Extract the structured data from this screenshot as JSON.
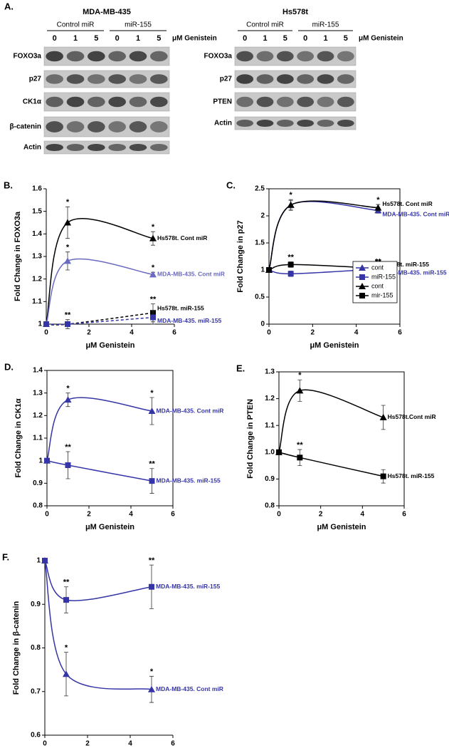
{
  "panel_a": {
    "label": "A.",
    "blots": [
      {
        "title": "MDA-MB-435",
        "groups": [
          "Control miR",
          "miR-155"
        ],
        "lanes": [
          0,
          1,
          5,
          0,
          1,
          5
        ],
        "lane_unit": "μM Genistein",
        "rows": [
          "FOXO3a",
          "p27",
          "CK1α",
          "β-catenin",
          "Actin"
        ]
      },
      {
        "title": "Hs578t",
        "groups": [
          "Control miR",
          "miR-155"
        ],
        "lanes": [
          0,
          1,
          5,
          0,
          1,
          5
        ],
        "lane_unit": "μM Genistein",
        "rows": [
          "FOXO3a",
          "p27",
          "PTEN",
          "Actin"
        ]
      }
    ]
  },
  "chart_data": [
    {
      "type": "line",
      "panel": "B.",
      "ylabel": "Fold Change in FOXO3a",
      "xlabel": "μM Genistein",
      "frame": "axes",
      "x": [
        0,
        1,
        5
      ],
      "xlim": [
        0,
        6
      ],
      "xticks": [
        0,
        2,
        4,
        6
      ],
      "ylim": [
        1,
        1.6
      ],
      "yticks": [
        1,
        1.1,
        1.2,
        1.3,
        1.4,
        1.5,
        1.6
      ],
      "series": [
        {
          "label": "Hs578t. Cont miR",
          "color": "#000000",
          "marker": "triangle",
          "dashed": false,
          "values": [
            1,
            1.45,
            1.38
          ],
          "errors": [
            0,
            0.07,
            0.03
          ],
          "point_labels": [
            null,
            "*",
            "*"
          ]
        },
        {
          "label": "MDA-MB-435. Cont miR",
          "color": "#6a6ac0",
          "marker": "triangle",
          "dashed": false,
          "values": [
            1,
            1.28,
            1.22
          ],
          "errors": [
            0,
            0.04,
            0.01
          ],
          "point_labels": [
            null,
            "*",
            "*"
          ]
        },
        {
          "label": "Hs578t. miR-155",
          "color": "#000000",
          "marker": "square",
          "dashed": true,
          "values": [
            1,
            1,
            1.05
          ],
          "errors": [
            0,
            0.02,
            0.04
          ],
          "point_labels": [
            null,
            "**",
            "**"
          ]
        },
        {
          "label": "MDA-MB-435. miR-155",
          "color": "#3535a8",
          "marker": "square",
          "dashed": true,
          "values": [
            1,
            1,
            1.03
          ],
          "errors": [
            0,
            0.01,
            0.03
          ],
          "point_labels": [
            null,
            null,
            null
          ]
        }
      ]
    },
    {
      "type": "line",
      "panel": "C.",
      "ylabel": "Fold Change in p27",
      "xlabel": "μM Genistein",
      "frame": "box",
      "legend": "lower right",
      "x": [
        0,
        1,
        5
      ],
      "xlim": [
        0,
        6
      ],
      "xticks": [
        0,
        2,
        4,
        6
      ],
      "ylim": [
        0,
        2.5
      ],
      "yticks": [
        0,
        0.5,
        1,
        1.5,
        2,
        2.5
      ],
      "series": [
        {
          "name": "cont",
          "label": "MDA-MB-435. Cont miR",
          "color": "#3535a8",
          "marker": "triangle",
          "dashed": false,
          "values": [
            1,
            2.2,
            2.1
          ],
          "errors": [
            0,
            0.08,
            0.05
          ],
          "point_labels": [
            null,
            null,
            null
          ]
        },
        {
          "name": "miR-155",
          "label": "MDA-MB-435. miR-155",
          "color": "#3535a8",
          "marker": "square",
          "dashed": false,
          "values": [
            1,
            0.93,
            1.02
          ],
          "errors": [
            0,
            0.05,
            0.04
          ],
          "point_labels": [
            null,
            "**",
            "**"
          ]
        },
        {
          "name": "cont",
          "label": "Hs578t. Cont miR",
          "color": "#000000",
          "marker": "triangle",
          "dashed": false,
          "values": [
            1,
            2.2,
            2.15
          ],
          "errors": [
            0,
            0.1,
            0.06
          ],
          "point_labels": [
            null,
            "*",
            "*"
          ]
        },
        {
          "name": "mir-155",
          "label": "Hs578t. miR-155",
          "color": "#000000",
          "marker": "square",
          "dashed": false,
          "values": [
            1,
            1.1,
            1.03
          ],
          "errors": [
            0,
            0.05,
            0.04
          ],
          "point_labels": [
            null,
            "**",
            "**"
          ]
        }
      ]
    },
    {
      "type": "line",
      "panel": "D.",
      "ylabel": "Fold Change in CK1α",
      "xlabel": "μM Genistein",
      "frame": "box",
      "x": [
        0,
        1,
        5
      ],
      "xlim": [
        0,
        6
      ],
      "xticks": [
        0,
        2,
        4,
        6
      ],
      "ylim": [
        0.8,
        1.4
      ],
      "yticks": [
        0.8,
        0.9,
        1,
        1.1,
        1.2,
        1.3,
        1.4
      ],
      "series": [
        {
          "label": "MDA-MB-435. Cont miR",
          "color": "#3535a8",
          "marker": "triangle",
          "dashed": false,
          "values": [
            1,
            1.27,
            1.22
          ],
          "errors": [
            0,
            0.03,
            0.06
          ],
          "point_labels": [
            null,
            "*",
            "*"
          ]
        },
        {
          "label": "MDA-MB-435. miR-155",
          "color": "#3535a8",
          "marker": "square",
          "dashed": false,
          "values": [
            1,
            0.98,
            0.91
          ],
          "errors": [
            0,
            0.06,
            0.055
          ],
          "point_labels": [
            null,
            "**",
            "**"
          ]
        }
      ]
    },
    {
      "type": "line",
      "panel": "E.",
      "ylabel": "Fold Change in PTEN",
      "xlabel": "μM Genistein",
      "frame": "box",
      "x": [
        0,
        1,
        5
      ],
      "xlim": [
        0,
        6
      ],
      "xticks": [
        0,
        2,
        4,
        6
      ],
      "ylim": [
        0.8,
        1.3
      ],
      "yticks": [
        {
          "value": 0.8,
          "label": "0.8"
        },
        {
          "value": 0.9,
          "label": "0.9"
        },
        {
          "value": 1,
          "label": "1.0"
        },
        {
          "value": 1.1,
          "label": "1.1"
        },
        {
          "value": 1.2,
          "label": "1.2"
        },
        {
          "value": 1.3,
          "label": "1.3"
        }
      ],
      "series": [
        {
          "label": "Hs578t.Cont miR",
          "color": "#000000",
          "marker": "triangle",
          "dashed": false,
          "values": [
            1,
            1.23,
            1.13
          ],
          "errors": [
            0,
            0.04,
            0.045
          ],
          "point_labels": [
            null,
            "*",
            null
          ]
        },
        {
          "label": "Hs578t. miR-155",
          "color": "#000000",
          "marker": "square",
          "dashed": false,
          "values": [
            1,
            0.98,
            0.91
          ],
          "errors": [
            0,
            0.03,
            0.025
          ],
          "point_labels": [
            null,
            "**",
            null
          ]
        }
      ]
    },
    {
      "type": "line",
      "panel": "F.",
      "ylabel": "Fold Change in β-catenin",
      "xlabel": "μM Genistein",
      "frame": "axes",
      "x": [
        0,
        1,
        5
      ],
      "xlim": [
        0,
        6
      ],
      "xticks": [
        0,
        2,
        4,
        6
      ],
      "ylim": [
        0.6,
        1
      ],
      "yticks": [
        0.6,
        0.7,
        0.8,
        0.9,
        1
      ],
      "series": [
        {
          "label": "MDA-MB-435. miR-155",
          "color": "#3535a8",
          "marker": "square",
          "dashed": false,
          "values": [
            1,
            0.91,
            0.94
          ],
          "errors": [
            0,
            0.03,
            0.05
          ],
          "point_labels": [
            null,
            "**",
            "**"
          ]
        },
        {
          "label": "MDA-MB-435. Cont miR",
          "color": "#3535a8",
          "marker": "triangle",
          "dashed": false,
          "values": [
            1,
            0.74,
            0.705
          ],
          "errors": [
            0,
            0.05,
            0.03
          ],
          "point_labels": [
            null,
            "*",
            "*"
          ]
        }
      ]
    }
  ]
}
